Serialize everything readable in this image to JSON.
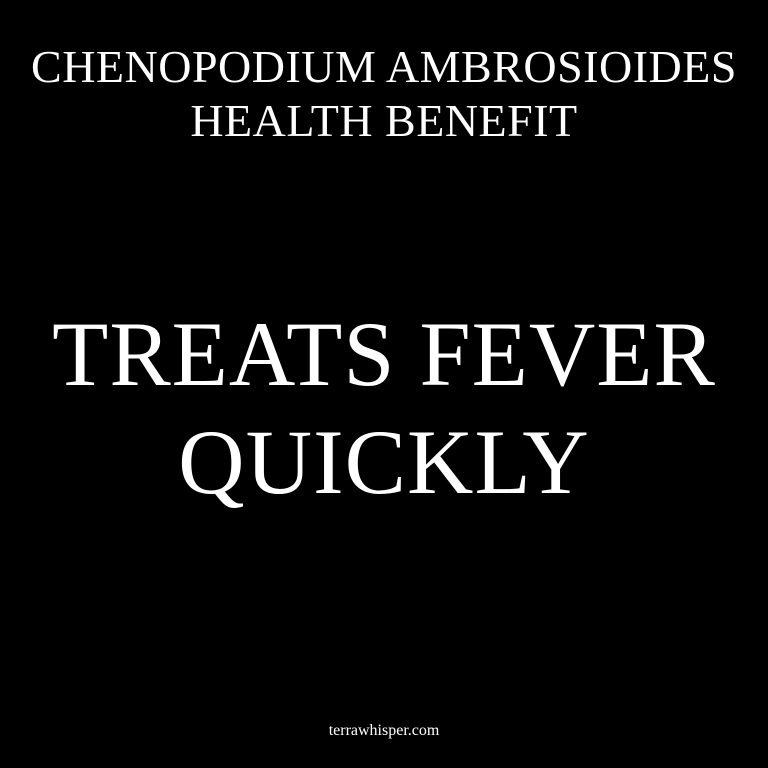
{
  "title": {
    "line1": "CHENOPODIUM AMBROSIOIDES",
    "line2": "HEALTH BENEFIT"
  },
  "headline": {
    "line1": "TREATS FEVER",
    "line2": "QUICKLY"
  },
  "footer": {
    "site": "terrawhisper.com"
  },
  "colors": {
    "background": "#000000",
    "text": "#ffffff"
  }
}
